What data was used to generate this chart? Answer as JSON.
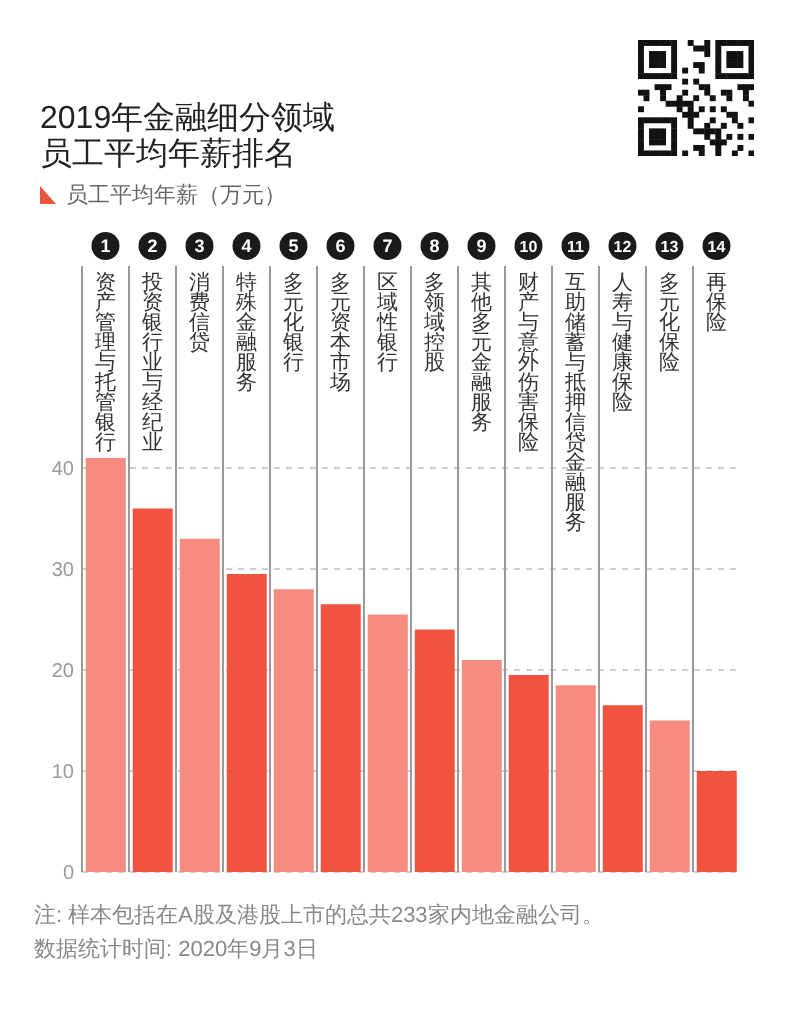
{
  "chart_data": {
    "type": "bar",
    "title": "2019年金融细分领域员工平均年薪排名",
    "categories": [
      "资产管理与托管银行",
      "投资银行业与经纪业",
      "消费信贷",
      "特殊金融服务",
      "多元化银行",
      "多元资本市场",
      "区域性银行",
      "多领域控股",
      "其他多元金融服务",
      "财产与意外伤害保险",
      "互助储蓄与抵押信贷金融服务",
      "人寿与健康保险",
      "多元化保险",
      "再保险"
    ],
    "series": [
      {
        "name": "员工平均年薪（万元）",
        "color": "#e9553f",
        "colors": [
          "#f68b80",
          "#f05440",
          "#f68b80",
          "#f05440",
          "#f68b80",
          "#f05440",
          "#f68b80",
          "#f05440",
          "#f68b80",
          "#f05440",
          "#f68b80",
          "#f05440",
          "#f68b80",
          "#f05440"
        ],
        "values": [
          41,
          36,
          33,
          29.5,
          28,
          26.5,
          25.5,
          24,
          21,
          19.5,
          18.5,
          16.5,
          15,
          10
        ]
      }
    ],
    "ylim": [
      0,
      60
    ],
    "yticks": [
      0,
      10,
      20,
      30,
      40
    ],
    "grid": true,
    "legend": "top left",
    "annotations": [
      {
        "text": "1",
        "x": "资产管理与托管银行"
      },
      {
        "text": "2",
        "x": "投资银行业与经纪业"
      },
      {
        "text": "3",
        "x": "消费信贷"
      },
      {
        "text": "4",
        "x": "特殊金融服务"
      },
      {
        "text": "5",
        "x": "多元化银行"
      },
      {
        "text": "6",
        "x": "多元资本市场"
      },
      {
        "text": "7",
        "x": "区域性银行"
      },
      {
        "text": "8",
        "x": "多领域控股"
      },
      {
        "text": "9",
        "x": "其他多元金融服务"
      },
      {
        "text": "10",
        "x": "财产与意外伤害保险"
      },
      {
        "text": "11",
        "x": "互助储蓄与抵押信贷金融服务"
      },
      {
        "text": "12",
        "x": "人寿与健康保险"
      },
      {
        "text": "13",
        "x": "多元化保险"
      },
      {
        "text": "14",
        "x": "再保险"
      },
      "注: 样本包括在A股及港股上市的总共233家内地金融公司。",
      "数据统计时间: 2020年9月3日"
    ]
  }
}
